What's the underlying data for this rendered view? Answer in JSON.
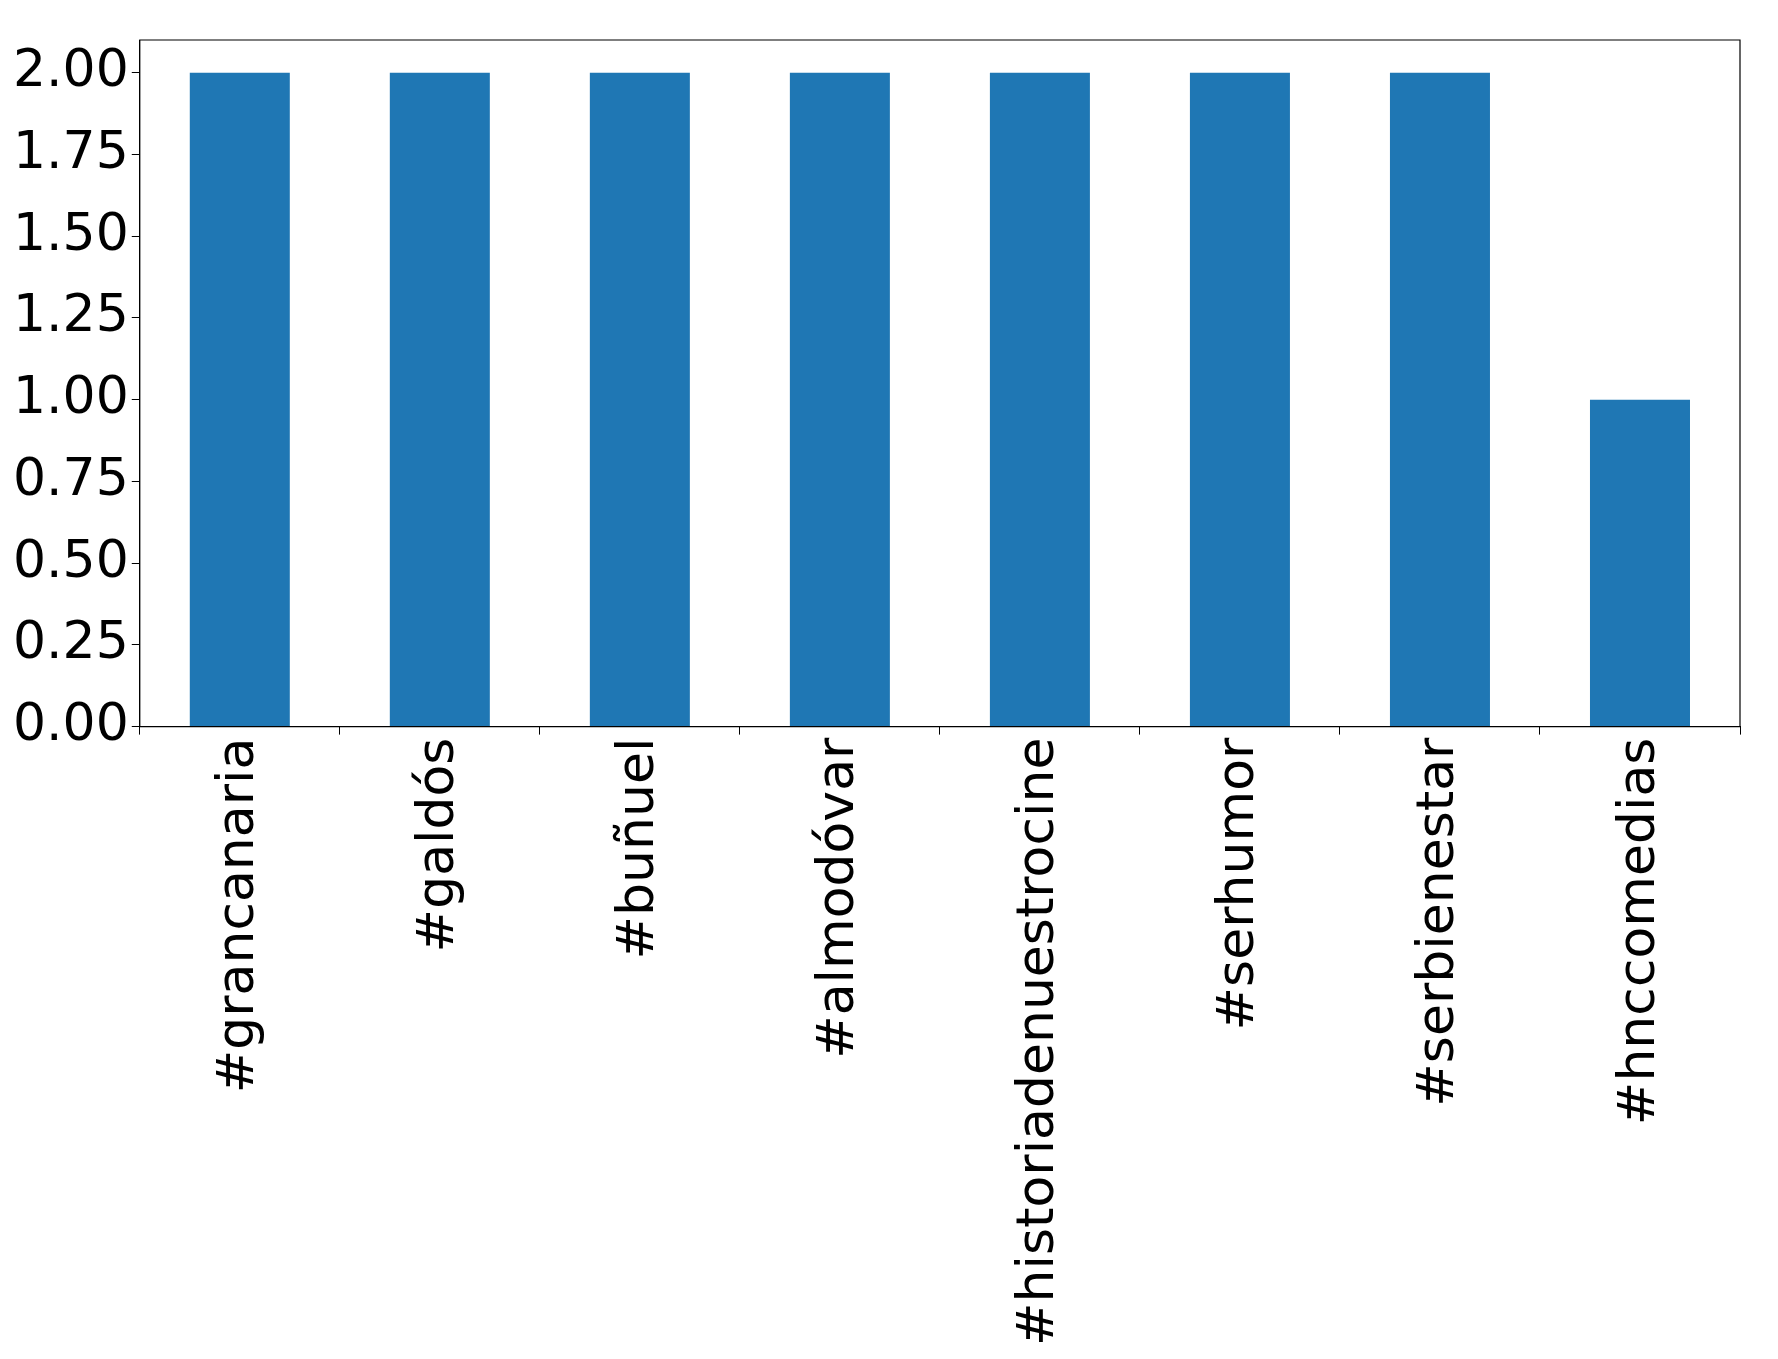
{
  "chart_data": {
    "type": "bar",
    "categories": [
      "#grancanaria",
      "#galdós",
      "#buñuel",
      "#almodóvar",
      "#historiadenuestrocine",
      "#serhumor",
      "#serbienestar",
      "#hnccomedias"
    ],
    "values": [
      2,
      2,
      2,
      2,
      2,
      2,
      2,
      1
    ],
    "color": "#1f77b4",
    "ylim": [
      0,
      2.1
    ],
    "yticks": [
      {
        "value": 0,
        "label": "0.00"
      },
      {
        "value": 0.25,
        "label": "0.25"
      },
      {
        "value": 0.5,
        "label": "0.50"
      },
      {
        "value": 0.75,
        "label": "0.75"
      },
      {
        "value": 1,
        "label": "1.00"
      },
      {
        "value": 1.25,
        "label": "1.25"
      },
      {
        "value": 1.5,
        "label": "1.50"
      },
      {
        "value": 1.75,
        "label": "1.75"
      },
      {
        "value": 2,
        "label": "2.00"
      }
    ],
    "grid": false,
    "legend": false
  }
}
